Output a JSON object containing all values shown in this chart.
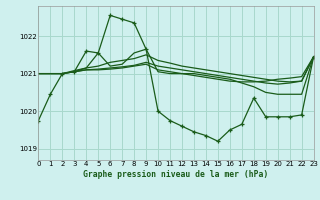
{
  "title": "Graphe pression niveau de la mer (hPa)",
  "bg_color": "#cff0ee",
  "grid_color": "#a8d8cc",
  "line_color": "#1a5c1a",
  "xlim": [
    0,
    23
  ],
  "ylim": [
    1018.7,
    1022.8
  ],
  "yticks": [
    1019,
    1020,
    1021,
    1022
  ],
  "xticks": [
    0,
    1,
    2,
    3,
    4,
    5,
    6,
    7,
    8,
    9,
    10,
    11,
    12,
    13,
    14,
    15,
    16,
    17,
    18,
    19,
    20,
    21,
    22,
    23
  ],
  "line1_x": [
    0,
    1,
    2,
    3,
    4,
    5,
    6,
    7,
    8,
    9,
    10,
    11,
    12,
    13,
    14,
    15,
    16,
    17,
    18,
    19,
    20,
    21,
    22,
    23
  ],
  "line1_y": [
    1019.75,
    1020.45,
    1021.0,
    1021.05,
    1021.6,
    1021.55,
    1022.55,
    1022.45,
    1022.35,
    1021.65,
    1020.0,
    1019.75,
    1019.6,
    1019.45,
    1019.35,
    1019.2,
    1019.5,
    1019.65,
    1020.35,
    1019.85,
    1019.85,
    1019.85,
    1019.9,
    1021.45
  ],
  "line2_x": [
    0,
    1,
    2,
    3,
    4,
    5,
    6,
    7,
    8,
    9,
    10,
    11,
    12,
    13,
    14,
    15,
    16,
    17,
    18,
    19,
    20,
    21,
    22,
    23
  ],
  "line2_y": [
    1021.0,
    1021.0,
    1021.0,
    1021.05,
    1021.1,
    1021.1,
    1021.12,
    1021.15,
    1021.2,
    1021.25,
    1021.1,
    1021.05,
    1021.0,
    1020.95,
    1020.9,
    1020.85,
    1020.8,
    1020.78,
    1020.78,
    1020.8,
    1020.85,
    1020.88,
    1020.92,
    1021.45
  ],
  "line3_x": [
    0,
    1,
    2,
    3,
    4,
    5,
    6,
    7,
    8,
    9,
    10,
    11,
    12,
    13,
    14,
    15,
    16,
    17,
    18,
    19,
    20,
    21,
    22,
    23
  ],
  "line3_y": [
    1021.0,
    1021.0,
    1021.0,
    1021.05,
    1021.1,
    1021.12,
    1021.15,
    1021.18,
    1021.22,
    1021.3,
    1021.2,
    1021.15,
    1021.1,
    1021.05,
    1021.0,
    1020.95,
    1020.9,
    1020.85,
    1020.8,
    1020.75,
    1020.72,
    1020.75,
    1020.8,
    1021.45
  ],
  "line4_x": [
    0,
    1,
    2,
    3,
    4,
    5,
    6,
    7,
    8,
    9,
    10,
    11,
    12,
    13,
    14,
    15,
    16,
    17,
    18,
    19,
    20,
    21,
    22,
    23
  ],
  "line4_y": [
    1021.0,
    1021.0,
    1021.0,
    1021.08,
    1021.15,
    1021.2,
    1021.3,
    1021.35,
    1021.4,
    1021.5,
    1021.35,
    1021.28,
    1021.2,
    1021.15,
    1021.1,
    1021.05,
    1021.0,
    1020.95,
    1020.9,
    1020.85,
    1020.8,
    1020.78,
    1020.8,
    1021.45
  ],
  "line5_x": [
    3,
    4,
    5,
    6,
    7,
    8,
    9,
    10,
    11,
    12,
    13,
    14,
    15,
    16,
    17,
    18,
    19,
    20,
    21,
    22,
    23
  ],
  "line5_y": [
    1021.05,
    1021.15,
    1021.55,
    1021.2,
    1021.25,
    1021.55,
    1021.65,
    1021.05,
    1021.0,
    1021.0,
    1021.0,
    1020.95,
    1020.9,
    1020.85,
    1020.75,
    1020.65,
    1020.5,
    1020.45,
    1020.45,
    1020.45,
    1021.45
  ]
}
